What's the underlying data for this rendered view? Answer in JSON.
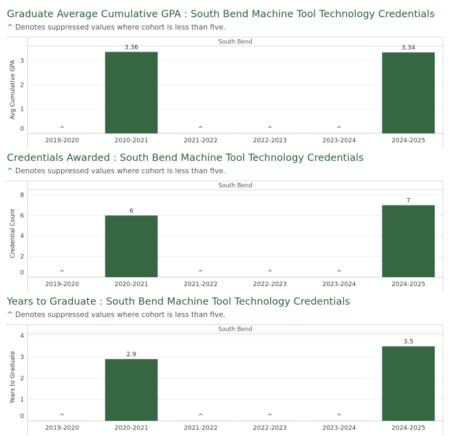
{
  "chart_data": [
    {
      "type": "bar",
      "title": "Graduate Average Cumulative GPA : South Bend Machine Tool Technology Credentials",
      "subtitle": "^ Denotes suppressed values where cohort is less than five.",
      "panel_label": "South Bend",
      "ylabel": "Avg Cumulative GPA",
      "xlabel": "",
      "categories": [
        "2019-2020",
        "2020-2021",
        "2021-2022",
        "2022-2023",
        "2023-2024",
        "2024-2025"
      ],
      "values": [
        null,
        3.36,
        null,
        null,
        null,
        3.34
      ],
      "data_labels": [
        "^",
        "3.36",
        "^",
        "^",
        "^",
        "3.34"
      ],
      "ylim": [
        0,
        3.6
      ],
      "yticks": [
        0,
        1,
        2,
        3
      ],
      "color": "#376742",
      "grid": true
    },
    {
      "type": "bar",
      "title": "Credentials Awarded : South Bend Machine Tool Technology Credentials",
      "subtitle": "^ Denotes suppressed values where cohort is less than five.",
      "panel_label": "South Bend",
      "ylabel": "Credential Count",
      "xlabel": "",
      "categories": [
        "2019-2020",
        "2020-2021",
        "2021-2022",
        "2022-2023",
        "2023-2024",
        "2024-2025"
      ],
      "values": [
        null,
        6,
        null,
        null,
        null,
        7
      ],
      "data_labels": [
        "^",
        "6",
        "^",
        "^",
        "^",
        "7"
      ],
      "ylim": [
        0,
        8.5
      ],
      "yticks": [
        0,
        2,
        4,
        6,
        8
      ],
      "color": "#376742",
      "grid": true
    },
    {
      "type": "bar",
      "title": "Years to Graduate : South Bend Machine Tool Technology Credentials",
      "subtitle": "^ Denotes suppressed values where cohort is less than five.",
      "panel_label": "South Bend",
      "ylabel": "Years to Graduate",
      "xlabel": "",
      "categories": [
        "2019-2020",
        "2020-2021",
        "2021-2022",
        "2022-2023",
        "2023-2024",
        "2024-2025"
      ],
      "values": [
        null,
        2.9,
        null,
        null,
        null,
        3.5
      ],
      "data_labels": [
        "^",
        "2.9",
        "^",
        "^",
        "^",
        "3.5"
      ],
      "ylim": [
        0,
        4.1
      ],
      "yticks": [
        0,
        1,
        2,
        3,
        4
      ],
      "color": "#376742",
      "grid": true
    }
  ]
}
